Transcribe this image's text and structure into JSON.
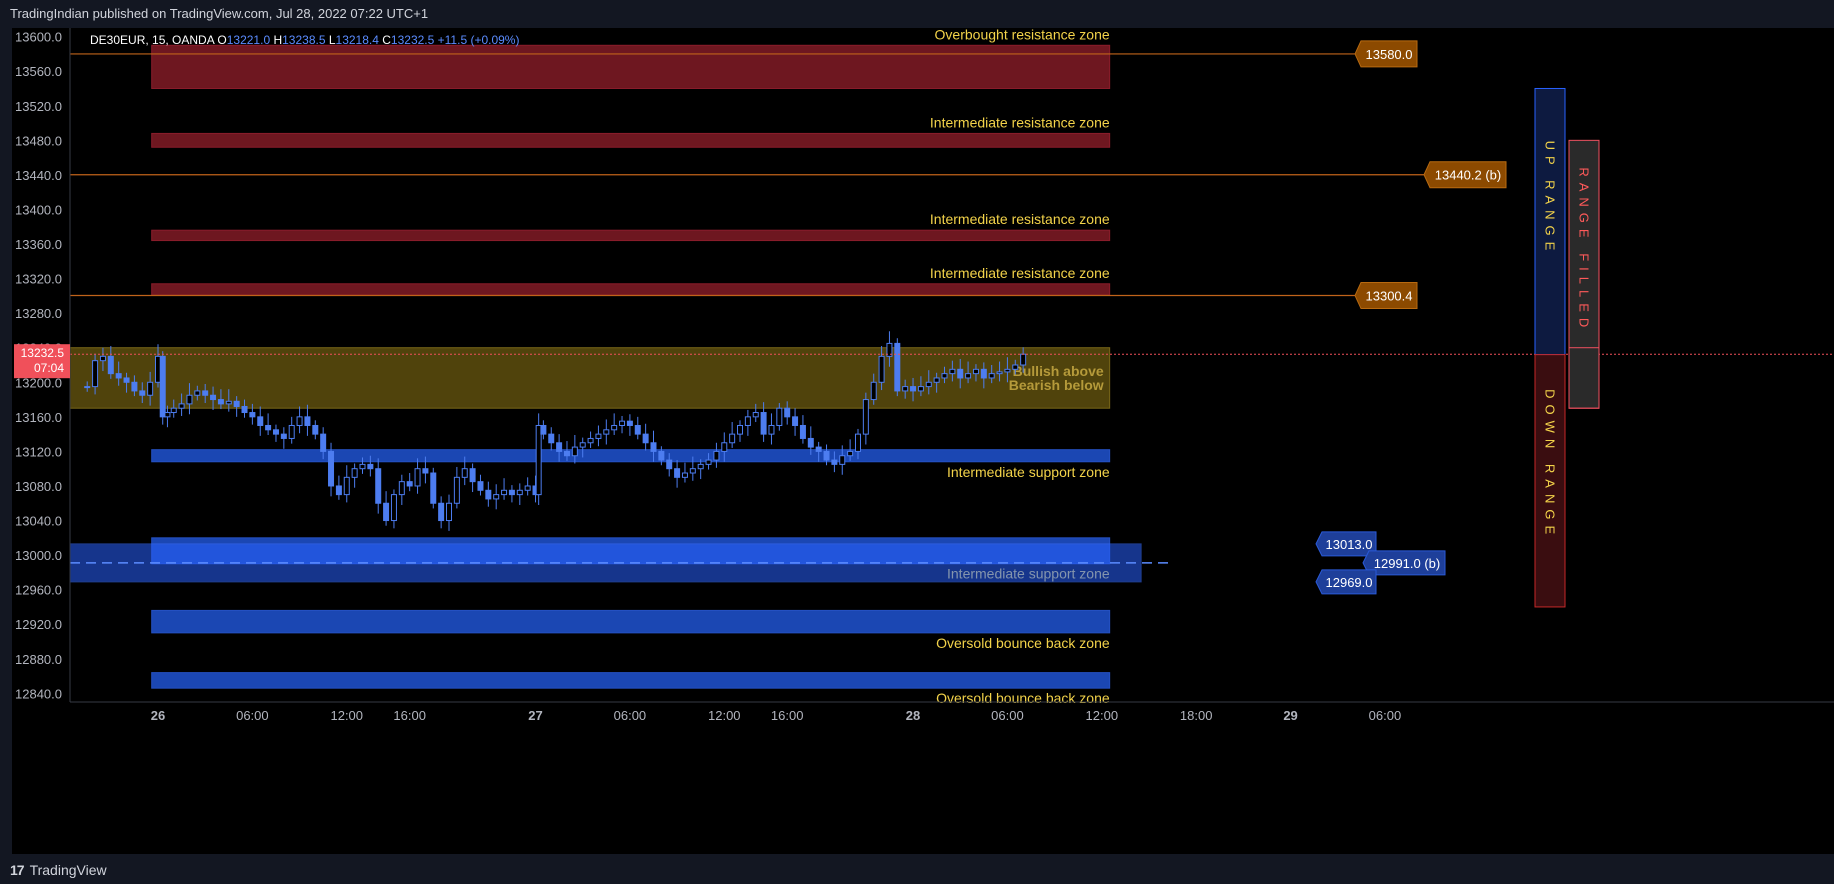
{
  "header": {
    "published_line": "TradingIndian published on TradingView.com, Jul 28, 2022 07:22 UTC+1"
  },
  "footer": {
    "brand": "TradingView",
    "logo_mark": "17"
  },
  "legend": {
    "symbol": "DE30EUR, 15, OANDA",
    "o_label": "O",
    "o": "13221.0",
    "h_label": "H",
    "h": "13238.5",
    "l_label": "L",
    "l": "13218.4",
    "c_label": "C",
    "c": "13232.5",
    "change": "+11.5 (+0.09%)"
  },
  "colors": {
    "background": "#000000",
    "candle": "#4d7df0",
    "resistance_zone": "#7a1a24",
    "support_zone": "#1e4fc7",
    "key_zone": "#6b5a10",
    "zone_text": "#f3d34a",
    "price_tag": "#8c4a00",
    "current_price": "#f0505a"
  },
  "chart_data": {
    "type": "candlestick",
    "symbol": "DE30EUR",
    "timeframe": "15",
    "ylim": [
      12830,
      13610
    ],
    "y_ticks": [
      12840,
      12880,
      12920,
      12960,
      13000,
      13040,
      13080,
      13120,
      13160,
      13200,
      13240,
      13280,
      13320,
      13360,
      13400,
      13440,
      13480,
      13520,
      13560,
      13600
    ],
    "y_tick_labels": [
      "12840.0",
      "12880.0",
      "12920.0",
      "12960.0",
      "13000.0",
      "13040.0",
      "13080.0",
      "13120.0",
      "13160.0",
      "13200.0",
      "13240.0",
      "13280.0",
      "13320.0",
      "13360.0",
      "13400.0",
      "13440.0",
      "13480.0",
      "13520.0",
      "13560.0",
      "13600.0"
    ],
    "x_ticks": [
      {
        "label": "26",
        "bold": true,
        "h": 0
      },
      {
        "label": "06:00",
        "bold": false,
        "h": 6
      },
      {
        "label": "12:00",
        "bold": false,
        "h": 12
      },
      {
        "label": "16:00",
        "bold": false,
        "h": 16
      },
      {
        "label": "27",
        "bold": true,
        "h": 24
      },
      {
        "label": "06:00",
        "bold": false,
        "h": 30
      },
      {
        "label": "12:00",
        "bold": false,
        "h": 36
      },
      {
        "label": "16:00",
        "bold": false,
        "h": 40
      },
      {
        "label": "28",
        "bold": true,
        "h": 48
      },
      {
        "label": "06:00",
        "bold": false,
        "h": 54
      },
      {
        "label": "12:00",
        "bold": false,
        "h": 60
      },
      {
        "label": "18:00",
        "bold": false,
        "h": 66
      },
      {
        "label": "29",
        "bold": true,
        "h": 72
      },
      {
        "label": "06:00",
        "bold": false,
        "h": 78
      }
    ],
    "price_path": [
      [
        -4.5,
        13195
      ],
      [
        -4,
        13225
      ],
      [
        -3.5,
        13230
      ],
      [
        -3,
        13210
      ],
      [
        -2.5,
        13205
      ],
      [
        -2,
        13200
      ],
      [
        -1.5,
        13190
      ],
      [
        -1,
        13185
      ],
      [
        -0.5,
        13200
      ],
      [
        0,
        13230
      ],
      [
        0.3,
        13160
      ],
      [
        0.6,
        13165
      ],
      [
        1,
        13170
      ],
      [
        1.5,
        13175
      ],
      [
        2,
        13185
      ],
      [
        2.5,
        13190
      ],
      [
        3,
        13185
      ],
      [
        3.5,
        13180
      ],
      [
        4,
        13175
      ],
      [
        4.5,
        13178
      ],
      [
        5,
        13172
      ],
      [
        5.5,
        13165
      ],
      [
        6,
        13160
      ],
      [
        6.5,
        13150
      ],
      [
        7,
        13145
      ],
      [
        7.5,
        13140
      ],
      [
        8,
        13135
      ],
      [
        8.5,
        13150
      ],
      [
        9,
        13160
      ],
      [
        9.5,
        13150
      ],
      [
        10,
        13140
      ],
      [
        10.5,
        13120
      ],
      [
        11,
        13080
      ],
      [
        11.5,
        13070
      ],
      [
        12,
        13090
      ],
      [
        12.5,
        13100
      ],
      [
        13,
        13105
      ],
      [
        13.5,
        13100
      ],
      [
        14,
        13060
      ],
      [
        14.5,
        13040
      ],
      [
        15,
        13070
      ],
      [
        15.5,
        13085
      ],
      [
        16,
        13080
      ],
      [
        16.5,
        13100
      ],
      [
        17,
        13095
      ],
      [
        17.5,
        13060
      ],
      [
        18,
        13040
      ],
      [
        18.5,
        13060
      ],
      [
        19,
        13090
      ],
      [
        19.5,
        13100
      ],
      [
        20,
        13085
      ],
      [
        20.5,
        13075
      ],
      [
        21,
        13065
      ],
      [
        21.5,
        13070
      ],
      [
        22,
        13075
      ],
      [
        22.5,
        13070
      ],
      [
        23,
        13075
      ],
      [
        23.5,
        13080
      ],
      [
        24,
        13070
      ],
      [
        24.2,
        13150
      ],
      [
        24.5,
        13140
      ],
      [
        25,
        13130
      ],
      [
        25.5,
        13120
      ],
      [
        26,
        13115
      ],
      [
        26.5,
        13125
      ],
      [
        27,
        13130
      ],
      [
        27.5,
        13135
      ],
      [
        28,
        13140
      ],
      [
        28.5,
        13145
      ],
      [
        29,
        13150
      ],
      [
        29.5,
        13155
      ],
      [
        30,
        13150
      ],
      [
        30.5,
        13140
      ],
      [
        31,
        13130
      ],
      [
        31.5,
        13120
      ],
      [
        32,
        13110
      ],
      [
        32.5,
        13100
      ],
      [
        33,
        13090
      ],
      [
        33.5,
        13095
      ],
      [
        34,
        13100
      ],
      [
        34.5,
        13105
      ],
      [
        35,
        13110
      ],
      [
        35.5,
        13120
      ],
      [
        36,
        13130
      ],
      [
        36.5,
        13140
      ],
      [
        37,
        13150
      ],
      [
        37.5,
        13160
      ],
      [
        38,
        13165
      ],
      [
        38.5,
        13140
      ],
      [
        39,
        13150
      ],
      [
        39.5,
        13170
      ],
      [
        40,
        13160
      ],
      [
        40.5,
        13150
      ],
      [
        41,
        13135
      ],
      [
        41.5,
        13125
      ],
      [
        42,
        13120
      ],
      [
        42.5,
        13110
      ],
      [
        43,
        13105
      ],
      [
        43.5,
        13115
      ],
      [
        44,
        13120
      ],
      [
        44.5,
        13140
      ],
      [
        45,
        13180
      ],
      [
        45.5,
        13200
      ],
      [
        46,
        13230
      ],
      [
        46.5,
        13245
      ],
      [
        47,
        13190
      ],
      [
        47.5,
        13195
      ],
      [
        48,
        13190
      ],
      [
        48.5,
        13195
      ],
      [
        49,
        13200
      ],
      [
        49.5,
        13205
      ],
      [
        50,
        13210
      ],
      [
        50.5,
        13215
      ],
      [
        51,
        13205
      ],
      [
        51.5,
        13210
      ],
      [
        52,
        13215
      ],
      [
        52.5,
        13205
      ],
      [
        53,
        13210
      ],
      [
        53.5,
        13212
      ],
      [
        54,
        13215
      ],
      [
        54.5,
        13220
      ],
      [
        55,
        13232.5
      ]
    ],
    "zones": [
      {
        "type": "resistance",
        "label": "Overbought resistance zone",
        "low": 13540,
        "high": 13590,
        "label_pos": "above"
      },
      {
        "type": "resistance",
        "label": "Intermediate resistance zone",
        "low": 13472,
        "high": 13488,
        "label_pos": "above"
      },
      {
        "type": "resistance",
        "label": "Intermediate resistance zone",
        "low": 13364,
        "high": 13376,
        "label_pos": "above"
      },
      {
        "type": "resistance",
        "label": "Intermediate resistance zone",
        "low": 13301,
        "high": 13314,
        "label_pos": "above"
      },
      {
        "type": "key",
        "label": "Bullish above",
        "label2": "Bearish below",
        "low": 13170,
        "high": 13240,
        "label_pos": "inside"
      },
      {
        "type": "support",
        "label": "Intermediate support zone",
        "low": 13108,
        "high": 13122,
        "label_pos": "below"
      },
      {
        "type": "support",
        "label": "Intermediate support zone",
        "low": 12990,
        "high": 13020,
        "label_pos": "below"
      },
      {
        "type": "support",
        "label": "Oversold bounce back zone",
        "low": 12910,
        "high": 12936,
        "label_pos": "below"
      },
      {
        "type": "support",
        "label": "Oversold bounce back zone",
        "low": 12846,
        "high": 12864,
        "label_pos": "below"
      }
    ],
    "horizontal_lines": [
      {
        "value": 13580,
        "label": "13580.0"
      },
      {
        "value": 13440.2,
        "label": "13440.2 (b)"
      },
      {
        "value": 13300.4,
        "label": "13300.4"
      }
    ],
    "position_box": {
      "top": 13013,
      "bottom": 12969,
      "mid": 12991,
      "top_label": "13013.0",
      "mid_label": "12991.0 (b)",
      "bottom_label": "12969.0"
    },
    "current_price": {
      "value": 13232.5,
      "label": "13232.5",
      "countdown": "07:04"
    },
    "range_bars": [
      {
        "name": "up-range",
        "label": "UP RANGE",
        "top": 13540,
        "bottom": 13232,
        "color": "#2962ff"
      },
      {
        "name": "down-range",
        "label": "DOWN RANGE",
        "top": 13232,
        "bottom": 12940,
        "color": "#c62828"
      },
      {
        "name": "range-filled",
        "label": "RANGE FILLED",
        "top": 13480,
        "bottom": 13170,
        "color": "#f05060"
      }
    ]
  }
}
